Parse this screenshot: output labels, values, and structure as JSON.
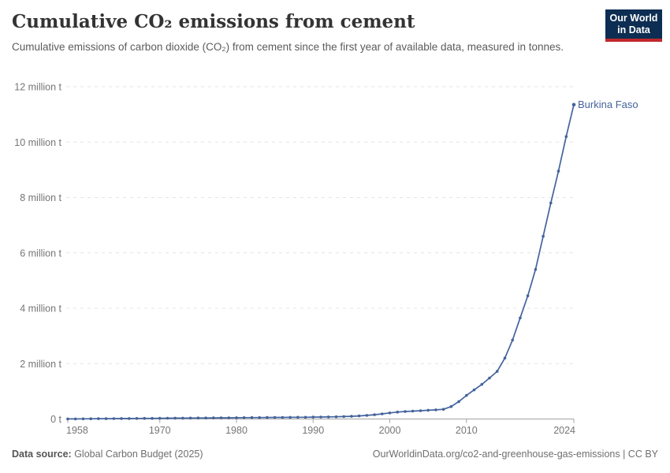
{
  "header": {
    "title": "Cumulative CO₂ emissions from cement",
    "subtitle": "Cumulative emissions of carbon dioxide (CO₂) from cement since the first year of available data, measured in tonnes.",
    "logo": {
      "line1": "Our World",
      "line2": "in Data",
      "bg_color": "#0d2e52",
      "accent_color": "#c0282d"
    }
  },
  "footer": {
    "source_label": "Data source:",
    "source_value": " Global Carbon Budget (2025)",
    "link": "OurWorldinData.org/co2-and-greenhouse-gas-emissions | CC BY"
  },
  "chart_data": {
    "type": "line",
    "title": "Cumulative CO₂ emissions from cement",
    "xlabel": "",
    "ylabel": "",
    "unit": "tonnes",
    "xlim": [
      1958,
      2024
    ],
    "ylim": [
      0,
      12000000
    ],
    "grid": "horizontal-dashed",
    "legend_position": "end-of-line",
    "x_ticks": [
      1958,
      1970,
      1980,
      1990,
      2000,
      2010,
      2024
    ],
    "y_ticks": [
      {
        "value": 0,
        "label": "0 t"
      },
      {
        "value": 2000000,
        "label": "2 million t"
      },
      {
        "value": 4000000,
        "label": "4 million t"
      },
      {
        "value": 6000000,
        "label": "6 million t"
      },
      {
        "value": 8000000,
        "label": "8 million t"
      },
      {
        "value": 10000000,
        "label": "10 million t"
      },
      {
        "value": 12000000,
        "label": "12 million t"
      }
    ],
    "axis_colors": {
      "gridline": "#e4e4e4",
      "axis_line": "#a3a3a3",
      "tick_label": "#757575"
    },
    "series": [
      {
        "name": "Burkina Faso",
        "color": "#44639c",
        "x": [
          1958,
          1959,
          1960,
          1961,
          1962,
          1963,
          1964,
          1965,
          1966,
          1967,
          1968,
          1969,
          1970,
          1971,
          1972,
          1973,
          1974,
          1975,
          1976,
          1977,
          1978,
          1979,
          1980,
          1981,
          1982,
          1983,
          1984,
          1985,
          1986,
          1987,
          1988,
          1989,
          1990,
          1991,
          1992,
          1993,
          1994,
          1995,
          1996,
          1997,
          1998,
          1999,
          2000,
          2001,
          2002,
          2003,
          2004,
          2005,
          2006,
          2007,
          2008,
          2009,
          2010,
          2011,
          2012,
          2013,
          2014,
          2015,
          2016,
          2017,
          2018,
          2019,
          2020,
          2021,
          2022,
          2023,
          2024
        ],
        "values": [
          2000,
          4000,
          6000,
          8000,
          10000,
          12000,
          14000,
          16000,
          18000,
          20000,
          22000,
          24000,
          26000,
          28000,
          30000,
          32000,
          34000,
          36000,
          38000,
          40000,
          42000,
          44000,
          46000,
          48000,
          50000,
          52000,
          54000,
          56000,
          58000,
          60000,
          62000,
          64000,
          67000,
          70000,
          74000,
          80000,
          88000,
          98000,
          112000,
          130000,
          155000,
          185000,
          220000,
          250000,
          270000,
          285000,
          300000,
          315000,
          330000,
          350000,
          450000,
          630000,
          850000,
          1050000,
          1250000,
          1480000,
          1720000,
          2200000,
          2850000,
          3650000,
          4450000,
          5400000,
          6600000,
          7800000,
          8950000,
          10200000,
          11350000
        ]
      }
    ]
  }
}
